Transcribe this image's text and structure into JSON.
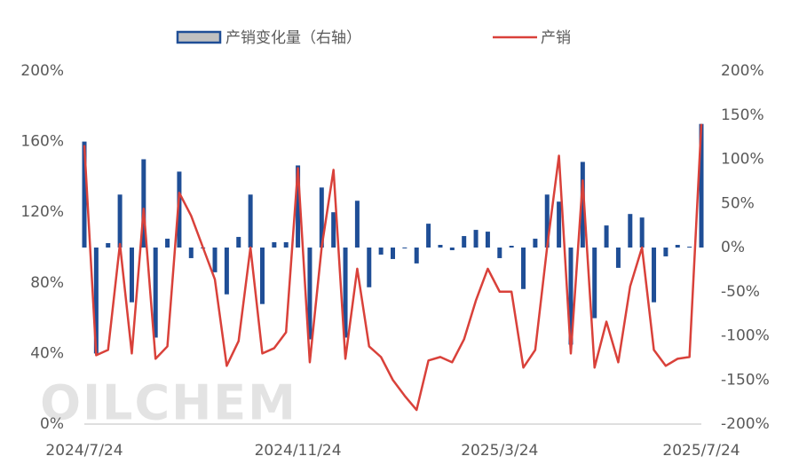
{
  "chart_data": {
    "type": "bar-line",
    "watermark": "OILCHEM",
    "categories": [
      "2024/7/24",
      null,
      null,
      null,
      null,
      null,
      null,
      null,
      null,
      null,
      null,
      null,
      null,
      null,
      null,
      null,
      null,
      null,
      "2024/11/24",
      null,
      null,
      null,
      null,
      null,
      null,
      null,
      null,
      null,
      null,
      null,
      null,
      null,
      null,
      null,
      null,
      "2025/3/24",
      null,
      null,
      null,
      null,
      null,
      null,
      null,
      null,
      null,
      null,
      null,
      null,
      null,
      null,
      null,
      null,
      "2025/7/24"
    ],
    "series": [
      {
        "name": "产销变化量（右轴）",
        "type": "bar",
        "axis": "y2",
        "color": "#1f4e96",
        "legend_fill": "#c0c0c0",
        "values": [
          120,
          -120,
          5,
          60,
          -62,
          100,
          -102,
          10,
          86,
          -12,
          0,
          -28,
          -53,
          12,
          60,
          -64,
          6,
          6,
          93,
          -104,
          68,
          40,
          -102,
          53,
          -45,
          -8,
          -13,
          0,
          -18,
          27,
          3,
          -3,
          13,
          20,
          18,
          -12,
          2,
          -47,
          10,
          60,
          52,
          -110,
          97,
          -80,
          25,
          -23,
          38,
          34,
          -62,
          -10,
          3,
          1,
          140
        ]
      },
      {
        "name": "产销",
        "type": "line",
        "axis": "y",
        "color": "#d9413a",
        "values": [
          158,
          39,
          42,
          102,
          40,
          122,
          37,
          44,
          131,
          118,
          100,
          82,
          33,
          47,
          100,
          40,
          43,
          52,
          145,
          35,
          100,
          144,
          37,
          88,
          44,
          38,
          25,
          16,
          8,
          36,
          38,
          35,
          48,
          70,
          88,
          75,
          75,
          32,
          42,
          100,
          152,
          40,
          138,
          32,
          58,
          35,
          78,
          100,
          42,
          33,
          37,
          38,
          170
        ]
      }
    ],
    "ylim": [
      0,
      200
    ],
    "yticks": [
      {
        "value": 0,
        "label": "0%"
      },
      {
        "value": 40,
        "label": "40%"
      },
      {
        "value": 80,
        "label": "80%"
      },
      {
        "value": 120,
        "label": "120%"
      },
      {
        "value": 160,
        "label": "160%"
      },
      {
        "value": 200,
        "label": "200%"
      }
    ],
    "y2lim": [
      -200,
      200
    ],
    "y2ticks": [
      {
        "value": -200,
        "label": "-200%"
      },
      {
        "value": -150,
        "label": "-150%"
      },
      {
        "value": -100,
        "label": "-100%"
      },
      {
        "value": -50,
        "label": "-50%"
      },
      {
        "value": 0,
        "label": "0%"
      },
      {
        "value": 50,
        "label": "50%"
      },
      {
        "value": 100,
        "label": "100%"
      },
      {
        "value": 150,
        "label": "150%"
      },
      {
        "value": 200,
        "label": "200%"
      }
    ]
  }
}
